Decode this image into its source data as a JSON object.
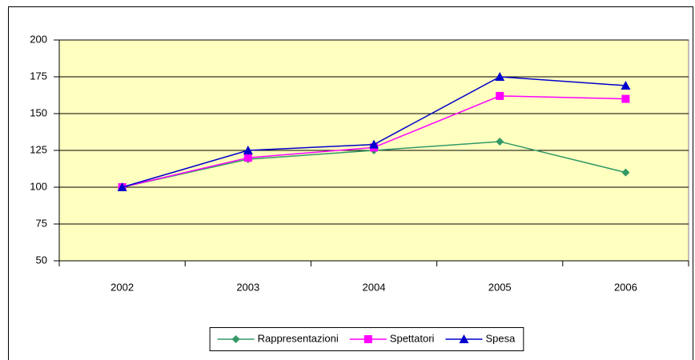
{
  "chart_data": {
    "type": "line",
    "categories": [
      "2002",
      "2003",
      "2004",
      "2005",
      "2006"
    ],
    "series": [
      {
        "name": "Rappresentazioni",
        "color": "#339966",
        "marker": "diamond",
        "values": [
          100,
          119,
          125,
          131,
          110
        ]
      },
      {
        "name": "Spettatori",
        "color": "#ff00ff",
        "marker": "square",
        "values": [
          100,
          120,
          127,
          162,
          160
        ]
      },
      {
        "name": "Spesa",
        "color": "#0000cc",
        "marker": "triangle",
        "values": [
          100,
          125,
          129,
          175,
          169
        ]
      }
    ],
    "ylim": [
      50,
      200
    ],
    "yticks": [
      50,
      75,
      100,
      125,
      150,
      175,
      200
    ],
    "grid": true,
    "legend": "bottom",
    "plot_background": "#ffffc0"
  }
}
